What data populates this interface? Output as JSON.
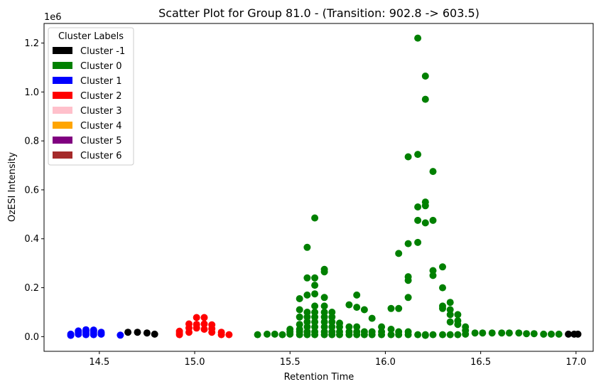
{
  "chart_data": {
    "type": "scatter",
    "title": "Scatter Plot for Group 81.0 -  (Transition: 902.8 -> 603.5)",
    "xlabel": "Retention Time",
    "ylabel": "OzESI Intensity",
    "y_offset_label": "1e6",
    "xlim": [
      14.21,
      17.09
    ],
    "ylim": [
      -0.06,
      1.28
    ],
    "x_ticks": [
      14.5,
      15.0,
      15.5,
      16.0,
      16.5,
      17.0
    ],
    "x_tick_labels": [
      "14.5",
      "15.0",
      "15.5",
      "16.0",
      "16.5",
      "17.0"
    ],
    "y_ticks": [
      0.0,
      0.2,
      0.4,
      0.6,
      0.8,
      1.0,
      1.2
    ],
    "y_tick_labels": [
      "0.0",
      "0.2",
      "0.4",
      "0.6",
      "0.8",
      "1.0",
      "1.2"
    ],
    "grid": false,
    "legend": {
      "title": "Cluster Labels",
      "placement": "upper-left",
      "entries": [
        {
          "label": "Cluster -1",
          "color": "#000000"
        },
        {
          "label": "Cluster 0",
          "color": "#008000"
        },
        {
          "label": "Cluster 1",
          "color": "#0000ff"
        },
        {
          "label": "Cluster 2",
          "color": "#ff0000"
        },
        {
          "label": "Cluster 3",
          "color": "#ffc0cb"
        },
        {
          "label": "Cluster 4",
          "color": "#ffa500"
        },
        {
          "label": "Cluster 5",
          "color": "#800080"
        },
        {
          "label": "Cluster 6",
          "color": "#a52a2a"
        }
      ]
    },
    "series": [
      {
        "name": "Cluster -1",
        "color": "#000000",
        "x": [
          14.65,
          14.7,
          14.75,
          14.79,
          16.96,
          16.99,
          17.01
        ],
        "y": [
          0.018,
          0.018,
          0.015,
          0.01,
          0.01,
          0.01,
          0.01
        ]
      },
      {
        "name": "Cluster 1",
        "color": "#0000ff",
        "x": [
          14.35,
          14.35,
          14.39,
          14.39,
          14.39,
          14.43,
          14.43,
          14.43,
          14.43,
          14.47,
          14.47,
          14.47,
          14.47,
          14.51,
          14.51,
          14.61
        ],
        "y": [
          0.005,
          0.01,
          0.01,
          0.018,
          0.023,
          0.008,
          0.015,
          0.022,
          0.028,
          0.008,
          0.015,
          0.022,
          0.027,
          0.01,
          0.018,
          0.006
        ]
      },
      {
        "name": "Cluster 2",
        "color": "#ff0000",
        "x": [
          14.92,
          14.92,
          14.92,
          14.97,
          14.97,
          14.97,
          15.01,
          15.01,
          15.01,
          15.05,
          15.05,
          15.05,
          15.09,
          15.09,
          15.09,
          15.14,
          15.14,
          15.18
        ],
        "y": [
          0.008,
          0.015,
          0.022,
          0.018,
          0.035,
          0.052,
          0.035,
          0.05,
          0.078,
          0.03,
          0.052,
          0.078,
          0.018,
          0.032,
          0.048,
          0.008,
          0.018,
          0.008
        ]
      },
      {
        "name": "Cluster 0",
        "color": "#008000",
        "x": [
          15.33,
          15.38,
          15.42,
          15.46,
          15.5,
          15.5,
          15.5,
          15.55,
          15.55,
          15.55,
          15.55,
          15.55,
          15.55,
          15.55,
          15.59,
          15.59,
          15.59,
          15.59,
          15.59,
          15.59,
          15.59,
          15.59,
          15.59,
          15.63,
          15.63,
          15.63,
          15.63,
          15.63,
          15.63,
          15.63,
          15.63,
          15.63,
          15.63,
          15.63,
          15.68,
          15.68,
          15.68,
          15.68,
          15.68,
          15.68,
          15.68,
          15.68,
          15.68,
          15.68,
          15.72,
          15.72,
          15.72,
          15.72,
          15.72,
          15.72,
          15.76,
          15.76,
          15.76,
          15.76,
          15.81,
          15.81,
          15.81,
          15.81,
          15.85,
          15.85,
          15.85,
          15.85,
          15.85,
          15.89,
          15.89,
          15.89,
          15.93,
          15.93,
          15.93,
          15.98,
          15.98,
          15.98,
          16.03,
          16.03,
          16.03,
          16.07,
          16.07,
          16.07,
          16.07,
          16.12,
          16.12,
          16.12,
          16.12,
          16.12,
          16.12,
          16.12,
          16.17,
          16.17,
          16.17,
          16.17,
          16.17,
          16.17,
          16.21,
          16.21,
          16.21,
          16.21,
          16.21,
          16.21,
          16.21,
          16.25,
          16.25,
          16.25,
          16.25,
          16.25,
          16.3,
          16.3,
          16.3,
          16.3,
          16.3,
          16.34,
          16.34,
          16.34,
          16.34,
          16.34,
          16.38,
          16.38,
          16.38,
          16.38,
          16.42,
          16.42,
          16.42,
          16.47,
          16.51,
          16.56,
          16.61,
          16.65,
          16.7,
          16.74,
          16.78,
          16.83,
          16.87,
          16.91
        ],
        "y": [
          0.008,
          0.01,
          0.01,
          0.008,
          0.01,
          0.02,
          0.03,
          0.008,
          0.02,
          0.03,
          0.05,
          0.08,
          0.11,
          0.155,
          0.008,
          0.02,
          0.04,
          0.06,
          0.08,
          0.1,
          0.17,
          0.24,
          0.365,
          0.008,
          0.02,
          0.04,
          0.06,
          0.08,
          0.1,
          0.125,
          0.175,
          0.21,
          0.24,
          0.485,
          0.008,
          0.02,
          0.04,
          0.06,
          0.08,
          0.1,
          0.125,
          0.16,
          0.265,
          0.275,
          0.008,
          0.02,
          0.04,
          0.06,
          0.08,
          0.1,
          0.008,
          0.02,
          0.04,
          0.055,
          0.008,
          0.02,
          0.04,
          0.13,
          0.008,
          0.02,
          0.04,
          0.12,
          0.17,
          0.008,
          0.02,
          0.11,
          0.008,
          0.02,
          0.075,
          0.008,
          0.02,
          0.04,
          0.008,
          0.03,
          0.115,
          0.008,
          0.02,
          0.115,
          0.34,
          0.008,
          0.02,
          0.16,
          0.23,
          0.245,
          0.38,
          0.735,
          0.008,
          0.385,
          0.475,
          0.53,
          0.745,
          1.22,
          0.008,
          0.465,
          0.535,
          0.55,
          0.97,
          1.065,
          0.005,
          0.008,
          0.25,
          0.27,
          0.475,
          0.675,
          0.008,
          0.115,
          0.125,
          0.2,
          0.285,
          0.008,
          0.06,
          0.09,
          0.11,
          0.14,
          0.008,
          0.05,
          0.065,
          0.09,
          0.01,
          0.025,
          0.04,
          0.015,
          0.015,
          0.015,
          0.015,
          0.015,
          0.015,
          0.012,
          0.012,
          0.01,
          0.01,
          0.01
        ]
      }
    ]
  }
}
